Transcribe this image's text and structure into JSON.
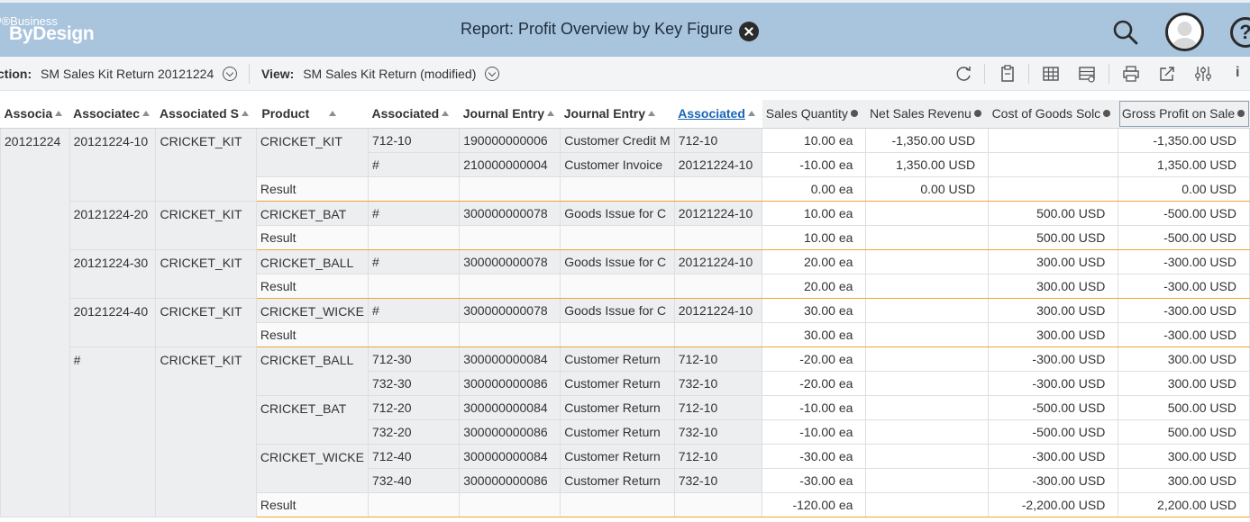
{
  "shell": {
    "logo_small": "Business",
    "logo_big": "ByDesign",
    "logo_mark": "D",
    "title": "Report: Profit Overview by Key Figure",
    "help_label": "?"
  },
  "toolbar": {
    "selection_label": "ction:",
    "selection_value": "SM Sales Kit Return 20121224",
    "view_label": "View:",
    "view_value": "SM Sales Kit Return (modified)",
    "info_label": "i"
  },
  "icons": [
    "close-icon",
    "search-icon",
    "avatar",
    "help-icon",
    "refresh-icon",
    "clipboard-icon",
    "table-icon",
    "table-settings-icon",
    "print-icon",
    "export-icon",
    "settings-icon",
    "info-icon"
  ],
  "colors": {
    "shell": "#a9c4dd",
    "result_line": "#f0a33a",
    "link": "#1a64b8"
  },
  "table": {
    "headers": [
      "Associa",
      "Associatec",
      "Associated S",
      "Product",
      "Associated",
      "Journal Entry",
      "Journal Entry",
      "Associated",
      "Sales Quantity",
      "Net Sales Revenu",
      "Cost of Goods Solc",
      "Gross Profit on Sale"
    ],
    "col0_value": "20121224",
    "groups": [
      {
        "item": "20121224-10",
        "product_group": "CRICKET_KIT",
        "rows": [
          {
            "product": "CRICKET_KIT",
            "assoc": "712-10",
            "je": "190000000006",
            "jetype": "Customer Credit M",
            "assoc2": "712-10",
            "qty": "10.00 ea",
            "rev": "-1,350.00 USD",
            "cogs": "",
            "gp": "-1,350.00 USD"
          },
          {
            "product": "",
            "assoc": "#",
            "je": "210000000004",
            "jetype": "Customer Invoice",
            "assoc2": "20121224-10",
            "qty": "-10.00 ea",
            "rev": "1,350.00 USD",
            "cogs": "",
            "gp": "1,350.00 USD"
          }
        ],
        "result": {
          "label": "Result",
          "qty": "0.00 ea",
          "rev": "0.00 USD",
          "cogs": "",
          "gp": "0.00 USD"
        }
      },
      {
        "item": "20121224-20",
        "product_group": "CRICKET_KIT",
        "rows": [
          {
            "product": "CRICKET_BAT",
            "assoc": "#",
            "je": "300000000078",
            "jetype": "Goods Issue for C",
            "assoc2": "20121224-10",
            "qty": "10.00 ea",
            "rev": "",
            "cogs": "500.00 USD",
            "gp": "-500.00 USD"
          }
        ],
        "result": {
          "label": "Result",
          "qty": "10.00 ea",
          "rev": "",
          "cogs": "500.00 USD",
          "gp": "-500.00 USD"
        }
      },
      {
        "item": "20121224-30",
        "product_group": "CRICKET_KIT",
        "rows": [
          {
            "product": "CRICKET_BALL",
            "assoc": "#",
            "je": "300000000078",
            "jetype": "Goods Issue for C",
            "assoc2": "20121224-10",
            "qty": "20.00 ea",
            "rev": "",
            "cogs": "300.00 USD",
            "gp": "-300.00 USD"
          }
        ],
        "result": {
          "label": "Result",
          "qty": "20.00 ea",
          "rev": "",
          "cogs": "300.00 USD",
          "gp": "-300.00 USD"
        }
      },
      {
        "item": "20121224-40",
        "product_group": "CRICKET_KIT",
        "rows": [
          {
            "product": "CRICKET_WICKE",
            "assoc": "#",
            "je": "300000000078",
            "jetype": "Goods Issue for C",
            "assoc2": "20121224-10",
            "qty": "30.00 ea",
            "rev": "",
            "cogs": "300.00 USD",
            "gp": "-300.00 USD"
          }
        ],
        "result": {
          "label": "Result",
          "qty": "30.00 ea",
          "rev": "",
          "cogs": "300.00 USD",
          "gp": "-300.00 USD"
        }
      },
      {
        "item": "#",
        "product_group": "CRICKET_KIT",
        "rows": [
          {
            "product": "CRICKET_BALL",
            "assoc": "712-30",
            "je": "300000000084",
            "jetype": "Customer Return",
            "assoc2": "712-10",
            "qty": "-20.00 ea",
            "rev": "",
            "cogs": "-300.00 USD",
            "gp": "300.00 USD"
          },
          {
            "product": "",
            "assoc": "732-30",
            "je": "300000000086",
            "jetype": "Customer Return",
            "assoc2": "732-10",
            "qty": "-20.00 ea",
            "rev": "",
            "cogs": "-300.00 USD",
            "gp": "300.00 USD"
          },
          {
            "product": "CRICKET_BAT",
            "assoc": "712-20",
            "je": "300000000084",
            "jetype": "Customer Return",
            "assoc2": "712-10",
            "qty": "-10.00 ea",
            "rev": "",
            "cogs": "-500.00 USD",
            "gp": "500.00 USD"
          },
          {
            "product": "",
            "assoc": "732-20",
            "je": "300000000086",
            "jetype": "Customer Return",
            "assoc2": "732-10",
            "qty": "-10.00 ea",
            "rev": "",
            "cogs": "-500.00 USD",
            "gp": "500.00 USD"
          },
          {
            "product": "CRICKET_WICKE",
            "assoc": "712-40",
            "je": "300000000084",
            "jetype": "Customer Return",
            "assoc2": "712-10",
            "qty": "-30.00 ea",
            "rev": "",
            "cogs": "-300.00 USD",
            "gp": "300.00 USD"
          },
          {
            "product": "",
            "assoc": "732-40",
            "je": "300000000086",
            "jetype": "Customer Return",
            "assoc2": "732-10",
            "qty": "-30.00 ea",
            "rev": "",
            "cogs": "-300.00 USD",
            "gp": "300.00 USD"
          }
        ],
        "result": {
          "label": "Result",
          "qty": "-120.00 ea",
          "rev": "",
          "cogs": "-2,200.00 USD",
          "gp": "2,200.00 USD"
        }
      }
    ]
  }
}
